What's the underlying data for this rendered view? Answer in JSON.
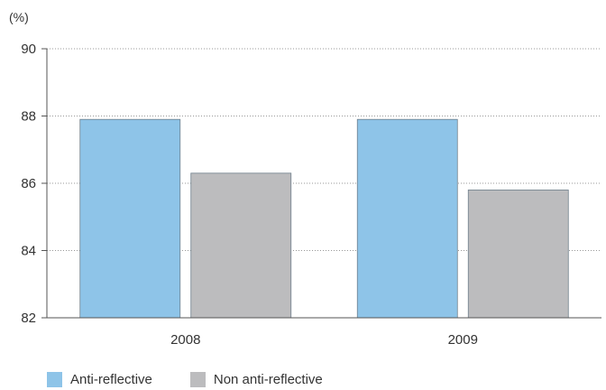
{
  "chart_data": {
    "type": "bar",
    "unit_label": "(%)",
    "categories": [
      "2008",
      "2009"
    ],
    "series": [
      {
        "name": "Anti-reflective",
        "values": [
          87.9,
          87.9
        ],
        "color": "#8ec4e8"
      },
      {
        "name": "Non anti-reflective",
        "values": [
          86.3,
          85.8
        ],
        "color": "#bcbcbe"
      }
    ],
    "ylim": [
      82,
      90
    ],
    "yticks": [
      82,
      84,
      86,
      88,
      90
    ],
    "grid": true,
    "legend_position": "bottom-left"
  }
}
